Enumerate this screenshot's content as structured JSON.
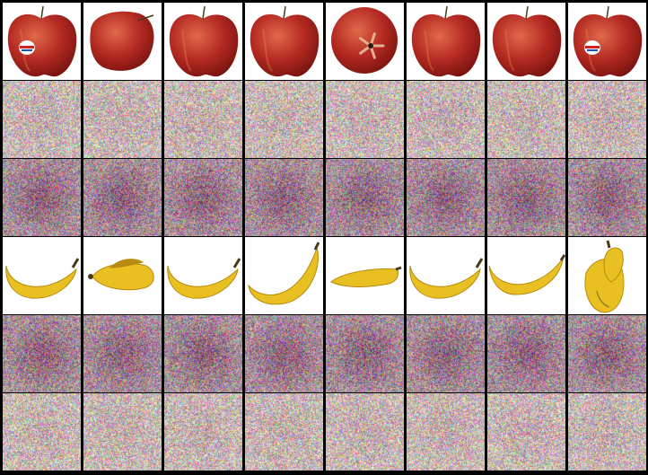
{
  "grid": {
    "columns": 8,
    "rows": [
      {
        "kind": "apple",
        "background": "#ffffff",
        "variants": [
          "sticker-front",
          "tilted-side",
          "front",
          "front",
          "top-view-calyx",
          "front",
          "front",
          "sticker-front"
        ]
      },
      {
        "kind": "noise-light",
        "background": "#c9b8b4",
        "variants": [
          "",
          "",
          "",
          "",
          "",
          "",
          "",
          ""
        ]
      },
      {
        "kind": "noise-mauve",
        "background": "#a88e9a",
        "variants": [
          "",
          "",
          "",
          "",
          "",
          "",
          "",
          ""
        ]
      },
      {
        "kind": "banana",
        "background": "#ffffff",
        "variants": [
          "curved",
          "bunch-end",
          "curved",
          "curved-up",
          "straight",
          "curved",
          "curved-tilt",
          "upright-pair"
        ]
      },
      {
        "kind": "noise-mauve",
        "background": "#a88e9a",
        "variants": [
          "",
          "",
          "",
          "",
          "",
          "",
          "",
          ""
        ]
      },
      {
        "kind": "noise-light",
        "background": "#c9b8b4",
        "variants": [
          "",
          "",
          "",
          "",
          "",
          "",
          "",
          ""
        ]
      }
    ]
  },
  "colors": {
    "apple_red": "#b52a22",
    "apple_dark": "#7a1410",
    "apple_highlight": "#e06a4a",
    "banana_yellow": "#e8c021",
    "banana_dark": "#b88a10",
    "banana_tip": "#4a3a1a",
    "sticker_white": "#ffffff",
    "sticker_red": "#d02020",
    "sticker_blue": "#2050c0"
  }
}
